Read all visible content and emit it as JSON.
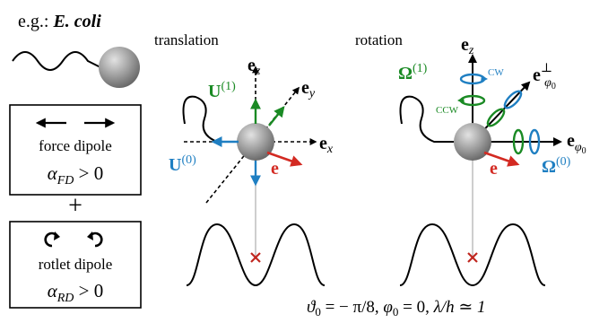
{
  "example": {
    "prefix": "e.g.: ",
    "organism": "E. coli"
  },
  "boxes": {
    "force": {
      "label": "force dipole",
      "alpha_sub": "FD",
      "condition": "> 0"
    },
    "plus": "+",
    "rotlet": {
      "label": "rotlet dipole",
      "alpha_sub": "RD",
      "condition": "> 0"
    }
  },
  "translation": {
    "title": "translation",
    "ez_base": "e",
    "ez_sub": "z",
    "ey_base": "e",
    "ey_sub": "y",
    "ex_base": "e",
    "ex_sub": "x",
    "U1_base": "U",
    "U1_sup": "(1)",
    "U0_base": "U",
    "U0_sup": "(0)",
    "e_label": "e"
  },
  "rotation": {
    "title": "rotation",
    "ez_base": "e",
    "ez_sub": "z",
    "eperp_base": "e",
    "eperp_sup": "⊥",
    "eperp_sub": "φ",
    "ephi_base": "e",
    "ephi_sub": "φ",
    "sub_zero": "0",
    "Omega1_base": "Ω",
    "Omega1_sup": "(1)",
    "Omega0_base": "Ω",
    "Omega0_sup": "(0)",
    "cw": "CW",
    "ccw": "CCW",
    "e_label": "e"
  },
  "params": {
    "theta_sym": "ϑ",
    "theta_sub": "0",
    "theta_val": " = − π/8,  ",
    "phi_sym": "φ",
    "phi_sub": "0",
    "phi_val": " = 0,  ",
    "lambda_text": "λ/h ≃ 1"
  },
  "colors": {
    "green": "#1a8a24",
    "blue": "#1f7fc2",
    "red": "#d32a22",
    "cross": "#c0271f"
  }
}
